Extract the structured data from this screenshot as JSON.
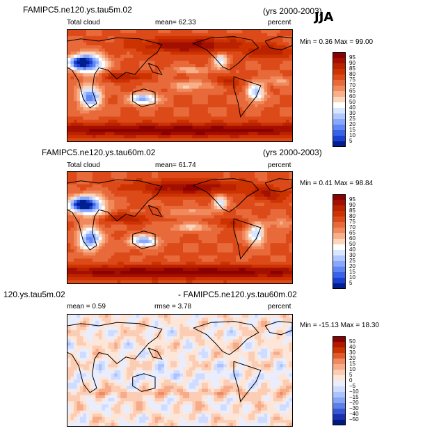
{
  "season": "JJA",
  "panels": [
    {
      "title_left": "FAMIPC5.ne120.ys.tau5m.02",
      "title_right": "(yrs 2000-2003)",
      "field_label": "Total cloud",
      "mean_text": "mean=  62.33",
      "units": "percent",
      "minmax": "Min =   0.36 Max =  99.00",
      "colorbar": {
        "labels": [
          "95",
          "90",
          "85",
          "80",
          "75",
          "70",
          "65",
          "60",
          "50",
          "40",
          "30",
          "25",
          "20",
          "15",
          "10",
          "5"
        ],
        "colors": [
          "#8b0000",
          "#a30f00",
          "#bb2200",
          "#cc3300",
          "#dd4a1a",
          "#e86a3a",
          "#f08a5c",
          "#f7b08a",
          "#fbd5bc",
          "#ffffff",
          "#d8e6ff",
          "#b0c8ff",
          "#88a8ff",
          "#5f86f5",
          "#3a62e6",
          "#1a3fd4",
          "#002090"
        ]
      },
      "field_type": "total_cloud"
    },
    {
      "title_left": "FAMIPC5.ne120.ys.tau60m.02",
      "title_right": "(yrs 2000-2003)",
      "field_label": "Total cloud",
      "mean_text": "mean=  61.74",
      "units": "percent",
      "minmax": "Min =   0.41 Max =  98.84",
      "colorbar": {
        "labels": [
          "95",
          "90",
          "85",
          "80",
          "75",
          "70",
          "65",
          "60",
          "50",
          "40",
          "30",
          "25",
          "20",
          "15",
          "10",
          "5"
        ],
        "colors": [
          "#8b0000",
          "#a30f00",
          "#bb2200",
          "#cc3300",
          "#dd4a1a",
          "#e86a3a",
          "#f08a5c",
          "#f7b08a",
          "#fbd5bc",
          "#ffffff",
          "#d8e6ff",
          "#b0c8ff",
          "#88a8ff",
          "#5f86f5",
          "#3a62e6",
          "#1a3fd4",
          "#002090"
        ]
      },
      "field_type": "total_cloud"
    },
    {
      "title_left": "120.ys.tau5m.02",
      "title_right": "- FAMIPC5.ne120.ys.tau60m.02",
      "field_label": "",
      "mean_text": "mean =   0.59",
      "rmse_text": "rmse =   3.78",
      "units": "percent",
      "minmax": "Min = -15.13 Max =  18.30",
      "colorbar": {
        "labels": [
          "50",
          "40",
          "30",
          "20",
          "15",
          "10",
          "5",
          "0",
          "−5",
          "−10",
          "−15",
          "−20",
          "−30",
          "−40",
          "−50"
        ],
        "colors": [
          "#8b0000",
          "#b01800",
          "#cc3300",
          "#e05a2a",
          "#f08860",
          "#f7ab88",
          "#fbcdb4",
          "#fde6d8",
          "#e8eeff",
          "#cfdcff",
          "#aac3ff",
          "#85a5f5",
          "#5c80e8",
          "#3656d4",
          "#1a30b0",
          "#001a80"
        ]
      },
      "field_type": "difference"
    }
  ]
}
